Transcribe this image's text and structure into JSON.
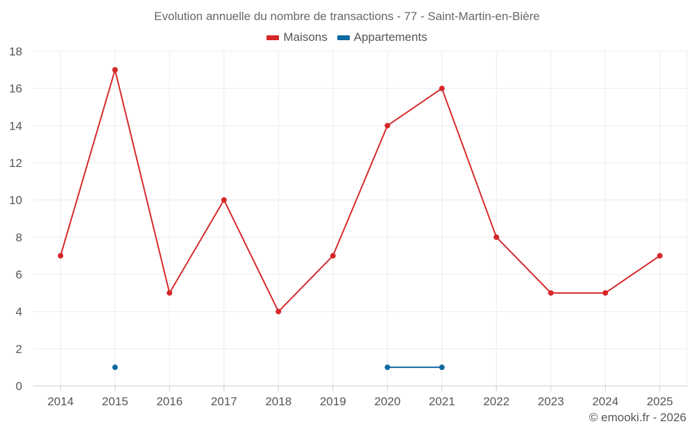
{
  "chart_data": {
    "type": "line",
    "title": "Evolution annuelle du nombre de transactions - 77 - Saint-Martin-en-Bière",
    "categories": [
      "2014",
      "2015",
      "2016",
      "2017",
      "2018",
      "2019",
      "2020",
      "2021",
      "2022",
      "2023",
      "2024",
      "2025"
    ],
    "series": [
      {
        "name": "Maisons",
        "color": "#d62728",
        "values": [
          7,
          17,
          5,
          10,
          4,
          7,
          14,
          16,
          8,
          5,
          5,
          7
        ]
      },
      {
        "name": "Appartements",
        "color": "#0c6aa0",
        "values": [
          null,
          1,
          null,
          null,
          null,
          null,
          1,
          1,
          null,
          null,
          null,
          null
        ]
      }
    ],
    "ylim": [
      0,
      18
    ],
    "yticks": [
      0,
      2,
      4,
      6,
      8,
      10,
      12,
      14,
      16,
      18
    ],
    "xlabel": "",
    "ylabel": "",
    "grid": true,
    "legend": "top-center"
  },
  "credit": "© emooki.fr - 2026"
}
